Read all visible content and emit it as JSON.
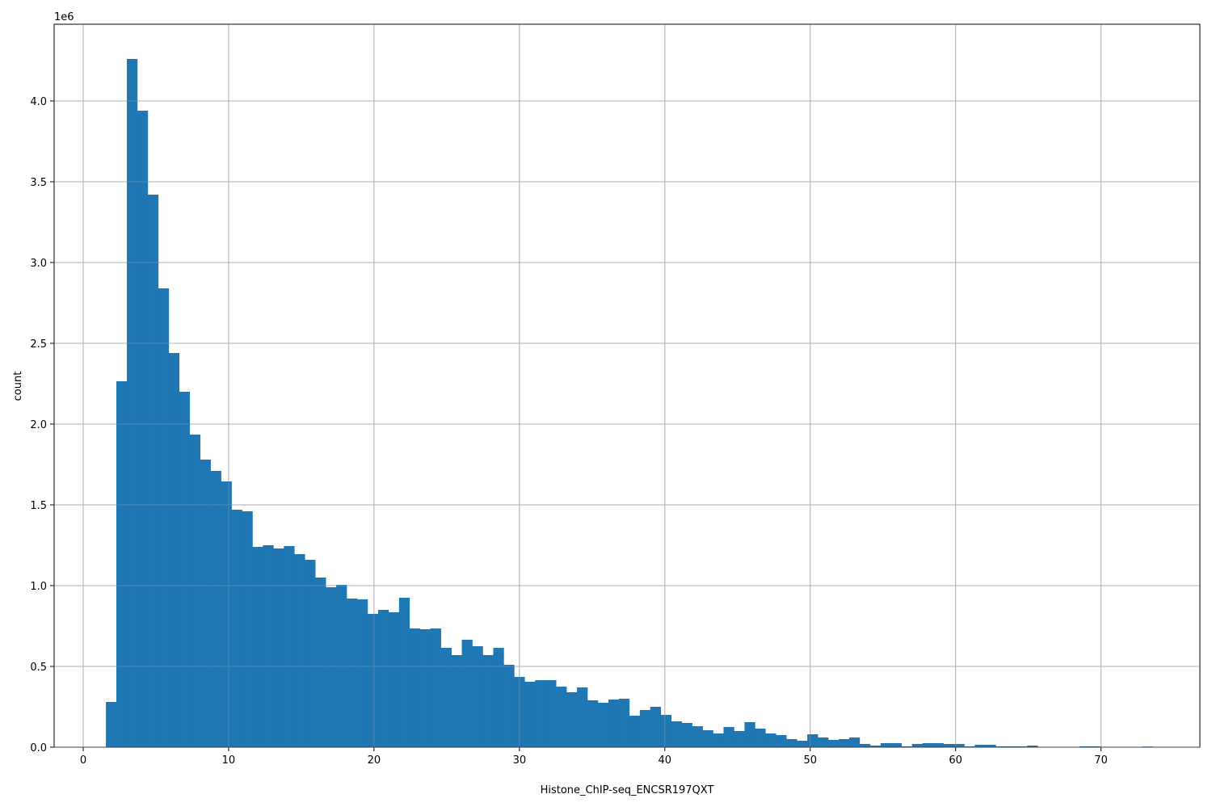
{
  "chart_data": {
    "type": "bar",
    "subtype": "histogram",
    "title": "",
    "xlabel": "Histone_ChIP-seq_ENCSR197QXT",
    "ylabel": "count",
    "y_offset_label": "1e6",
    "xlim": [
      -2.0,
      76.8
    ],
    "ylim": [
      0,
      4475000
    ],
    "bin_start": 1.56,
    "bin_width": 0.72,
    "grid": true,
    "bar_color": "#1f77b4",
    "grid_color": "#b0b0b0",
    "x_ticks": [
      "0",
      "10",
      "20",
      "30",
      "40",
      "50",
      "60",
      "70"
    ],
    "y_ticks": [
      "0.0",
      "0.5",
      "1.0",
      "1.5",
      "2.0",
      "2.5",
      "3.0",
      "3.5",
      "4.0"
    ],
    "values": [
      280000,
      2265000,
      4260000,
      3940000,
      3420000,
      2840000,
      2440000,
      2200000,
      1935000,
      1780000,
      1710000,
      1645000,
      1470000,
      1460000,
      1240000,
      1250000,
      1230000,
      1245000,
      1195000,
      1160000,
      1050000,
      990000,
      1005000,
      920000,
      915000,
      825000,
      850000,
      835000,
      925000,
      735000,
      730000,
      735000,
      615000,
      570000,
      665000,
      625000,
      570000,
      615000,
      510000,
      435000,
      405000,
      415000,
      415000,
      375000,
      340000,
      370000,
      290000,
      275000,
      295000,
      300000,
      195000,
      230000,
      250000,
      200000,
      160000,
      150000,
      130000,
      105000,
      85000,
      125000,
      100000,
      155000,
      115000,
      85000,
      75000,
      50000,
      40000,
      80000,
      60000,
      45000,
      50000,
      60000,
      20000,
      10000,
      25000,
      25000,
      5000,
      20000,
      25000,
      25000,
      20000,
      20000,
      5000,
      15000,
      15000,
      5000,
      5000,
      5000,
      10000,
      2000,
      2000,
      2000,
      2000,
      5000,
      5000,
      1000,
      1000,
      1000,
      1000,
      4000
    ]
  }
}
